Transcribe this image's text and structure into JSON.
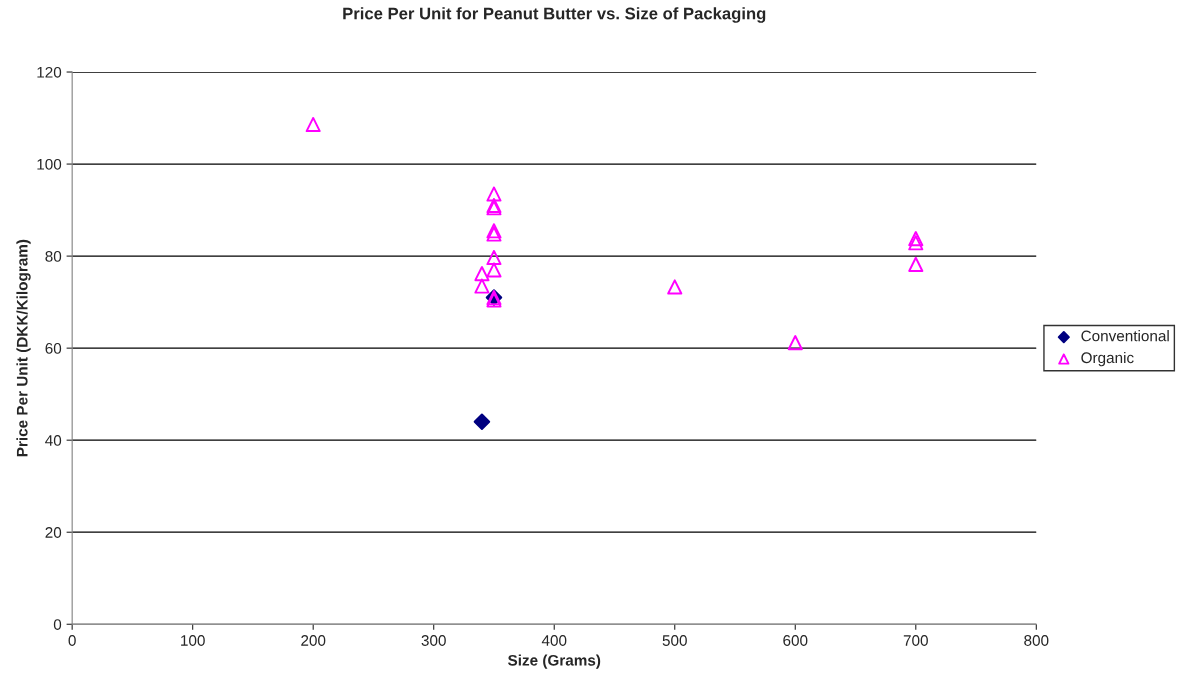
{
  "chart_data": {
    "type": "scatter",
    "title": "Price Per Unit for Peanut Butter vs. Size of Packaging",
    "xlabel": "Size (Grams)",
    "ylabel": "Price Per Unit (DKK/Kilogram)",
    "series": [
      {
        "name": "Conventional",
        "color": "#000080",
        "marker": "diamond",
        "x": [
          340,
          350
        ],
        "values": [
          44,
          71
        ]
      },
      {
        "name": "Organic",
        "color": "#ff00ff",
        "marker": "triangle",
        "x": [
          200,
          350,
          350,
          350,
          350,
          350,
          350,
          350,
          350,
          350,
          340,
          340,
          500,
          600,
          700,
          700,
          700
        ],
        "values": [
          108.6,
          93.5,
          91,
          90.5,
          85.5,
          84.8,
          79.7,
          77,
          71,
          70.5,
          76.2,
          73.5,
          73.3,
          61.2,
          83.8,
          82.9,
          78.2
        ]
      }
    ],
    "xlim": [
      0,
      800
    ],
    "xticks": [
      0,
      100,
      200,
      300,
      400,
      500,
      600,
      700,
      800
    ],
    "ylim": [
      0,
      120
    ],
    "yticks": [
      0,
      20,
      40,
      60,
      80,
      100,
      120
    ],
    "grid": "y",
    "legend": "right"
  }
}
